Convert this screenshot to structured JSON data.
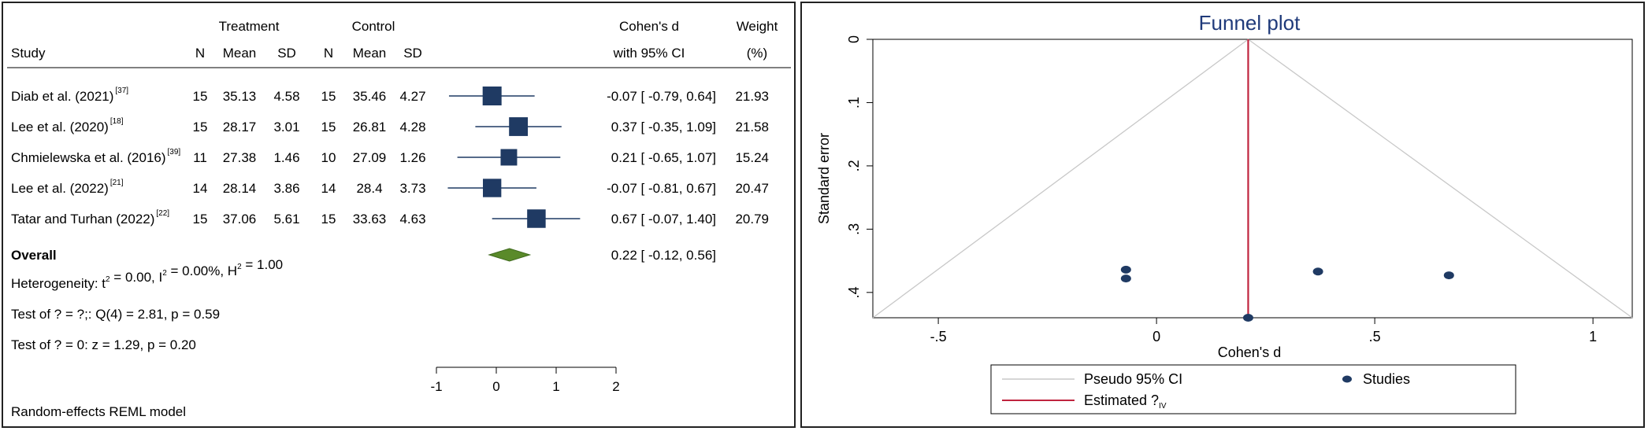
{
  "chart_data": [
    {
      "type": "forest",
      "headers": {
        "treatment": "Treatment",
        "control": "Control",
        "study": "Study",
        "n": "N",
        "mean": "Mean",
        "sd": "SD",
        "effect_line1": "Cohen's d",
        "effect_line2": "with 95% CI",
        "weight_line1": "Weight",
        "weight_line2": "(%)"
      },
      "studies": [
        {
          "label": "Diab et al. (2021)",
          "ref": "[37]",
          "t_n": "15",
          "t_mean": "35.13",
          "t_sd": "4.58",
          "c_n": "15",
          "c_mean": "35.46",
          "c_sd": "4.27",
          "d": -0.07,
          "lo": -0.79,
          "hi": 0.64,
          "ci_text": "-0.07 [ -0.79,  0.64]",
          "weight": 21.93,
          "weight_text": "21.93"
        },
        {
          "label": "Lee et al. (2020)",
          "ref": "[18]",
          "t_n": "15",
          "t_mean": "28.17",
          "t_sd": "3.01",
          "c_n": "15",
          "c_mean": "26.81",
          "c_sd": "4.28",
          "d": 0.37,
          "lo": -0.35,
          "hi": 1.09,
          "ci_text": "0.37 [ -0.35,  1.09]",
          "weight": 21.58,
          "weight_text": "21.58"
        },
        {
          "label": "Chmielewska et al. (2016)",
          "ref": "[39]",
          "t_n": "11",
          "t_mean": "27.38",
          "t_sd": "1.46",
          "c_n": "10",
          "c_mean": "27.09",
          "c_sd": "1.26",
          "d": 0.21,
          "lo": -0.65,
          "hi": 1.07,
          "ci_text": "0.21 [ -0.65,  1.07]",
          "weight": 15.24,
          "weight_text": "15.24"
        },
        {
          "label": "Lee et al. (2022)",
          "ref": "[21]",
          "t_n": "14",
          "t_mean": "28.14",
          "t_sd": "3.86",
          "c_n": "14",
          "c_mean": "28.4",
          "c_sd": "3.73",
          "d": -0.07,
          "lo": -0.81,
          "hi": 0.67,
          "ci_text": "-0.07 [ -0.81,  0.67]",
          "weight": 20.47,
          "weight_text": "20.47"
        },
        {
          "label": "Tatar and Turhan (2022)",
          "ref": "[22]",
          "t_n": "15",
          "t_mean": "37.06",
          "t_sd": "5.61",
          "c_n": "15",
          "c_mean": "33.63",
          "c_sd": "4.63",
          "d": 0.67,
          "lo": -0.07,
          "hi": 1.4,
          "ci_text": "0.67 [ -0.07,  1.40]",
          "weight": 20.79,
          "weight_text": "20.79"
        }
      ],
      "overall": {
        "label": "Overall",
        "d": 0.22,
        "lo": -0.12,
        "hi": 0.56,
        "ci_text": "0.22 [ -0.12,  0.56]"
      },
      "notes": {
        "het_pre": "Heterogeneity: t",
        "het_mid1": " = 0.00, I",
        "het_mid2": " = 0.00%, H",
        "het_end": " = 1.00",
        "test1": "Test of ? = ?;: Q(4) = 2.81, p = 0.59",
        "test2": "Test of ? = 0: z = 1.29, p = 0.20",
        "model": "Random-effects REML model",
        "sup2": "2"
      },
      "xlim": [
        -1,
        2
      ],
      "ticks": [
        {
          "value": -1,
          "label": "-1"
        },
        {
          "value": 0,
          "label": "0"
        },
        {
          "value": 1,
          "label": "1"
        },
        {
          "value": 2,
          "label": "2"
        }
      ],
      "colors": {
        "square": "#1f3a63",
        "line": "#1f3a63",
        "diamond": "#5a8a2a"
      }
    },
    {
      "type": "scatter",
      "title": "Funnel plot",
      "xlabel": "Cohen's d",
      "ylabel": "Standard error",
      "xlim": [
        -0.65,
        1.09
      ],
      "ylim": [
        0,
        0.44
      ],
      "y_reversed": true,
      "xticks": [
        {
          "value": -0.5,
          "label": "-.5"
        },
        {
          "value": 0,
          "label": "0"
        },
        {
          "value": 0.5,
          "label": ".5"
        },
        {
          "value": 1,
          "label": "1"
        }
      ],
      "yticks": [
        {
          "value": 0,
          "label": "0"
        },
        {
          "value": 0.1,
          "label": ".1"
        },
        {
          "value": 0.2,
          "label": ".2"
        },
        {
          "value": 0.3,
          "label": ".3"
        },
        {
          "value": 0.4,
          "label": ".4"
        }
      ],
      "points": [
        {
          "x": -0.07,
          "y": 0.364
        },
        {
          "x": -0.07,
          "y": 0.378
        },
        {
          "x": 0.37,
          "y": 0.367
        },
        {
          "x": 0.67,
          "y": 0.373
        },
        {
          "x": 0.21,
          "y": 0.44
        }
      ],
      "estimate": 0.21,
      "pseudo_ci": {
        "apex_y": 0,
        "bottom_y": 0.44
      },
      "legend": [
        {
          "label": "Pseudo 95% CI",
          "kind": "line",
          "color": "#c8c8c8"
        },
        {
          "label": "Studies",
          "kind": "marker",
          "color": "#1f3a63"
        },
        {
          "label": "Estimated ?",
          "sub": "IV",
          "kind": "line",
          "color": "#c0243e"
        }
      ],
      "colors": {
        "point": "#1f3a63",
        "estimate": "#c0243e",
        "ci": "#c8c8c8",
        "title": "#1f3a7a"
      }
    }
  ]
}
